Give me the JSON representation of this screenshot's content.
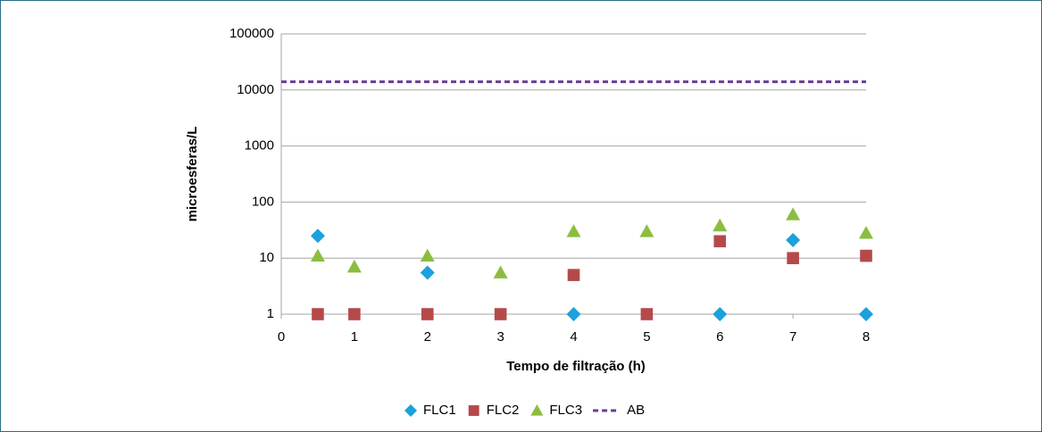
{
  "chart_data": {
    "type": "scatter",
    "x_label": "Tempo de filtração (h)",
    "y_label": "microesferas/L",
    "xlim": [
      0,
      8
    ],
    "xticks": [
      0,
      1,
      2,
      3,
      4,
      5,
      6,
      7,
      8
    ],
    "ylim": [
      1,
      100000
    ],
    "yticks": [
      1,
      10,
      100,
      1000,
      10000,
      100000
    ],
    "log_y": true,
    "grid": true,
    "legend": "bottom",
    "series": [
      {
        "name": "FLC1",
        "color": "#1ba1db",
        "marker": "diamond",
        "x": [
          0.5,
          2,
          4,
          6,
          7,
          8
        ],
        "values": [
          25,
          5.5,
          1,
          1,
          21,
          1
        ]
      },
      {
        "name": "FLC2",
        "color": "#b5494a",
        "marker": "square",
        "x": [
          0.5,
          1,
          2,
          3,
          4,
          5,
          6,
          7,
          8
        ],
        "values": [
          1,
          1,
          1,
          1,
          5,
          1,
          20,
          10,
          11
        ]
      },
      {
        "name": "FLC3",
        "color": "#8cbd3f",
        "marker": "triangle",
        "x": [
          0.5,
          1,
          2,
          3,
          4,
          5,
          6,
          7,
          8
        ],
        "values": [
          11,
          7,
          11,
          5.5,
          30,
          30,
          38,
          60,
          28
        ]
      },
      {
        "name": "AB",
        "color": "#6a3c97",
        "type": "line",
        "dash": true,
        "x": [
          0,
          8
        ],
        "values": [
          14000,
          14000
        ]
      }
    ]
  }
}
